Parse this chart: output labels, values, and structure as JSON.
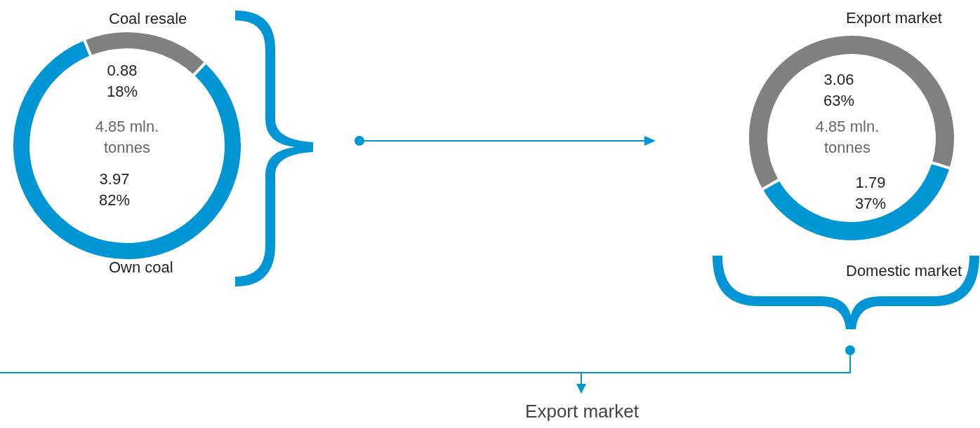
{
  "chart_data": [
    {
      "type": "donut",
      "categories": [
        "Coal resale",
        "Own coal"
      ],
      "values": [
        0.88,
        3.97
      ],
      "colors": [
        "#808080",
        "#0096d6"
      ],
      "value_labels": [
        "0.88\n18%",
        "3.97\n82%"
      ],
      "annotations": [
        "4.85 mln.\ntonnes"
      ]
    },
    {
      "type": "donut",
      "categories": [
        "Export market",
        "Domestic market"
      ],
      "values": [
        3.06,
        1.79
      ],
      "colors": [
        "#808080",
        "#0096d6"
      ],
      "value_labels": [
        "3.06\n63%",
        "1.79\n37%"
      ],
      "annotations": [
        "4.85 mln.\ntonnes",
        "Export market"
      ]
    }
  ]
}
